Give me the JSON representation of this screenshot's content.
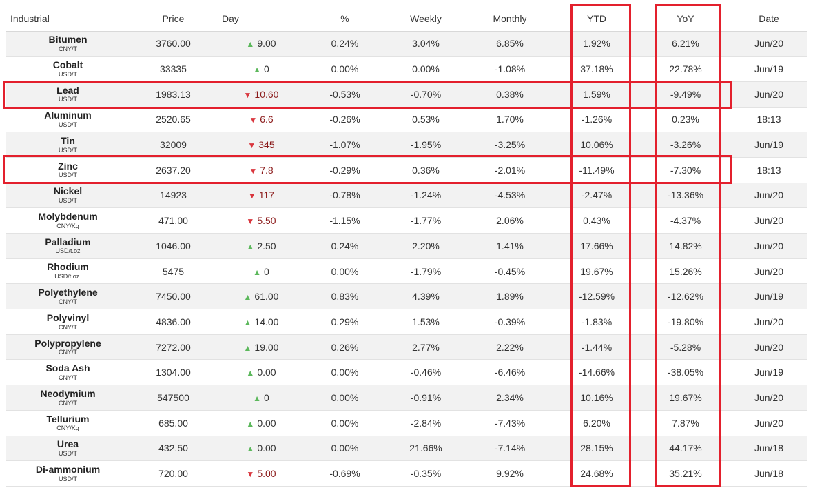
{
  "headers": {
    "industrial": "Industrial",
    "price": "Price",
    "day": "Day",
    "pct": "%",
    "weekly": "Weekly",
    "monthly": "Monthly",
    "ytd": "YTD",
    "yoy": "YoY",
    "date": "Date"
  },
  "rows": [
    {
      "name": "Bitumen",
      "unit": "CNY/T",
      "price": "3760.00",
      "day": "9.00",
      "pct": "0.24%",
      "weekly": "3.04%",
      "monthly": "6.85%",
      "ytd": "1.92%",
      "yoy": "6.21%",
      "date": "Jun/20"
    },
    {
      "name": "Cobalt",
      "unit": "USD/T",
      "price": "33335",
      "day": "0",
      "pct": "0.00%",
      "weekly": "0.00%",
      "monthly": "-1.08%",
      "ytd": "37.18%",
      "yoy": "22.78%",
      "date": "Jun/19"
    },
    {
      "name": "Lead",
      "unit": "USD/T",
      "price": "1983.13",
      "day": "10.60",
      "pct": "-0.53%",
      "weekly": "-0.70%",
      "monthly": "0.38%",
      "ytd": "1.59%",
      "yoy": "-9.49%",
      "date": "Jun/20"
    },
    {
      "name": "Aluminum",
      "unit": "USD/T",
      "price": "2520.65",
      "day": "6.6",
      "pct": "-0.26%",
      "weekly": "0.53%",
      "monthly": "1.70%",
      "ytd": "-1.26%",
      "yoy": "0.23%",
      "date": "18:13"
    },
    {
      "name": "Tin",
      "unit": "USD/T",
      "price": "32009",
      "day": "345",
      "pct": "-1.07%",
      "weekly": "-1.95%",
      "monthly": "-3.25%",
      "ytd": "10.06%",
      "yoy": "-3.26%",
      "date": "Jun/19"
    },
    {
      "name": "Zinc",
      "unit": "USD/T",
      "price": "2637.20",
      "day": "7.8",
      "pct": "-0.29%",
      "weekly": "0.36%",
      "monthly": "-2.01%",
      "ytd": "-11.49%",
      "yoy": "-7.30%",
      "date": "18:13"
    },
    {
      "name": "Nickel",
      "unit": "USD/T",
      "price": "14923",
      "day": "117",
      "pct": "-0.78%",
      "weekly": "-1.24%",
      "monthly": "-4.53%",
      "ytd": "-2.47%",
      "yoy": "-13.36%",
      "date": "Jun/20"
    },
    {
      "name": "Molybdenum",
      "unit": "CNY/Kg",
      "price": "471.00",
      "day": "5.50",
      "pct": "-1.15%",
      "weekly": "-1.77%",
      "monthly": "2.06%",
      "ytd": "0.43%",
      "yoy": "-4.37%",
      "date": "Jun/20"
    },
    {
      "name": "Palladium",
      "unit": "USD/t.oz",
      "price": "1046.00",
      "day": "2.50",
      "pct": "0.24%",
      "weekly": "2.20%",
      "monthly": "1.41%",
      "ytd": "17.66%",
      "yoy": "14.82%",
      "date": "Jun/20"
    },
    {
      "name": "Rhodium",
      "unit": "USD/t oz.",
      "price": "5475",
      "day": "0",
      "pct": "0.00%",
      "weekly": "-1.79%",
      "monthly": "-0.45%",
      "ytd": "19.67%",
      "yoy": "15.26%",
      "date": "Jun/20"
    },
    {
      "name": "Polyethylene",
      "unit": "CNY/T",
      "price": "7450.00",
      "day": "61.00",
      "pct": "0.83%",
      "weekly": "4.39%",
      "monthly": "1.89%",
      "ytd": "-12.59%",
      "yoy": "-12.62%",
      "date": "Jun/19"
    },
    {
      "name": "Polyvinyl",
      "unit": "CNY/T",
      "price": "4836.00",
      "day": "14.00",
      "pct": "0.29%",
      "weekly": "1.53%",
      "monthly": "-0.39%",
      "ytd": "-1.83%",
      "yoy": "-19.80%",
      "date": "Jun/20"
    },
    {
      "name": "Polypropylene",
      "unit": "CNY/T",
      "price": "7272.00",
      "day": "19.00",
      "pct": "0.26%",
      "weekly": "2.77%",
      "monthly": "2.22%",
      "ytd": "-1.44%",
      "yoy": "-5.28%",
      "date": "Jun/20"
    },
    {
      "name": "Soda Ash",
      "unit": "CNY/T",
      "price": "1304.00",
      "day": "0.00",
      "pct": "0.00%",
      "weekly": "-0.46%",
      "monthly": "-6.46%",
      "ytd": "-14.66%",
      "yoy": "-38.05%",
      "date": "Jun/19"
    },
    {
      "name": "Neodymium",
      "unit": "CNY/T",
      "price": "547500",
      "day": "0",
      "pct": "0.00%",
      "weekly": "-0.91%",
      "monthly": "2.34%",
      "ytd": "10.16%",
      "yoy": "19.67%",
      "date": "Jun/20"
    },
    {
      "name": "Tellurium",
      "unit": "CNY/Kg",
      "price": "685.00",
      "day": "0.00",
      "pct": "0.00%",
      "weekly": "-2.84%",
      "monthly": "-7.43%",
      "ytd": "6.20%",
      "yoy": "7.87%",
      "date": "Jun/20"
    },
    {
      "name": "Urea",
      "unit": "USD/T",
      "price": "432.50",
      "day": "0.00",
      "pct": "0.00%",
      "weekly": "21.66%",
      "monthly": "-7.14%",
      "ytd": "28.15%",
      "yoy": "44.17%",
      "date": "Jun/18"
    },
    {
      "name": "Di-ammonium",
      "unit": "USD/T",
      "price": "720.00",
      "day": "5.00",
      "pct": "-0.69%",
      "weekly": "-0.35%",
      "monthly": "9.92%",
      "ytd": "24.68%",
      "yoy": "35.21%",
      "date": "Jun/18"
    }
  ],
  "highlight_color": "#e3202d",
  "icons": {
    "up": "triangle-up-icon",
    "down": "triangle-down-icon"
  }
}
